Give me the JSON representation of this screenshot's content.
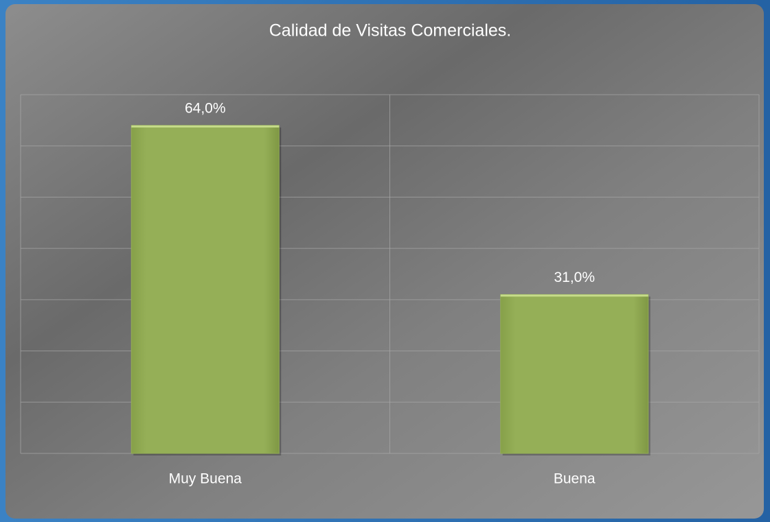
{
  "chart_data": {
    "type": "bar",
    "title": "Calidad de Visitas Comerciales.",
    "categories": [
      "Muy Buena",
      "Buena"
    ],
    "values": [
      64,
      31
    ],
    "value_labels": [
      "64,0%",
      "31,0%"
    ],
    "color": "#93ad55",
    "ylim": [
      0,
      70
    ],
    "yticks": [
      0,
      10,
      20,
      30,
      40,
      50,
      60,
      70
    ],
    "grid": true
  }
}
